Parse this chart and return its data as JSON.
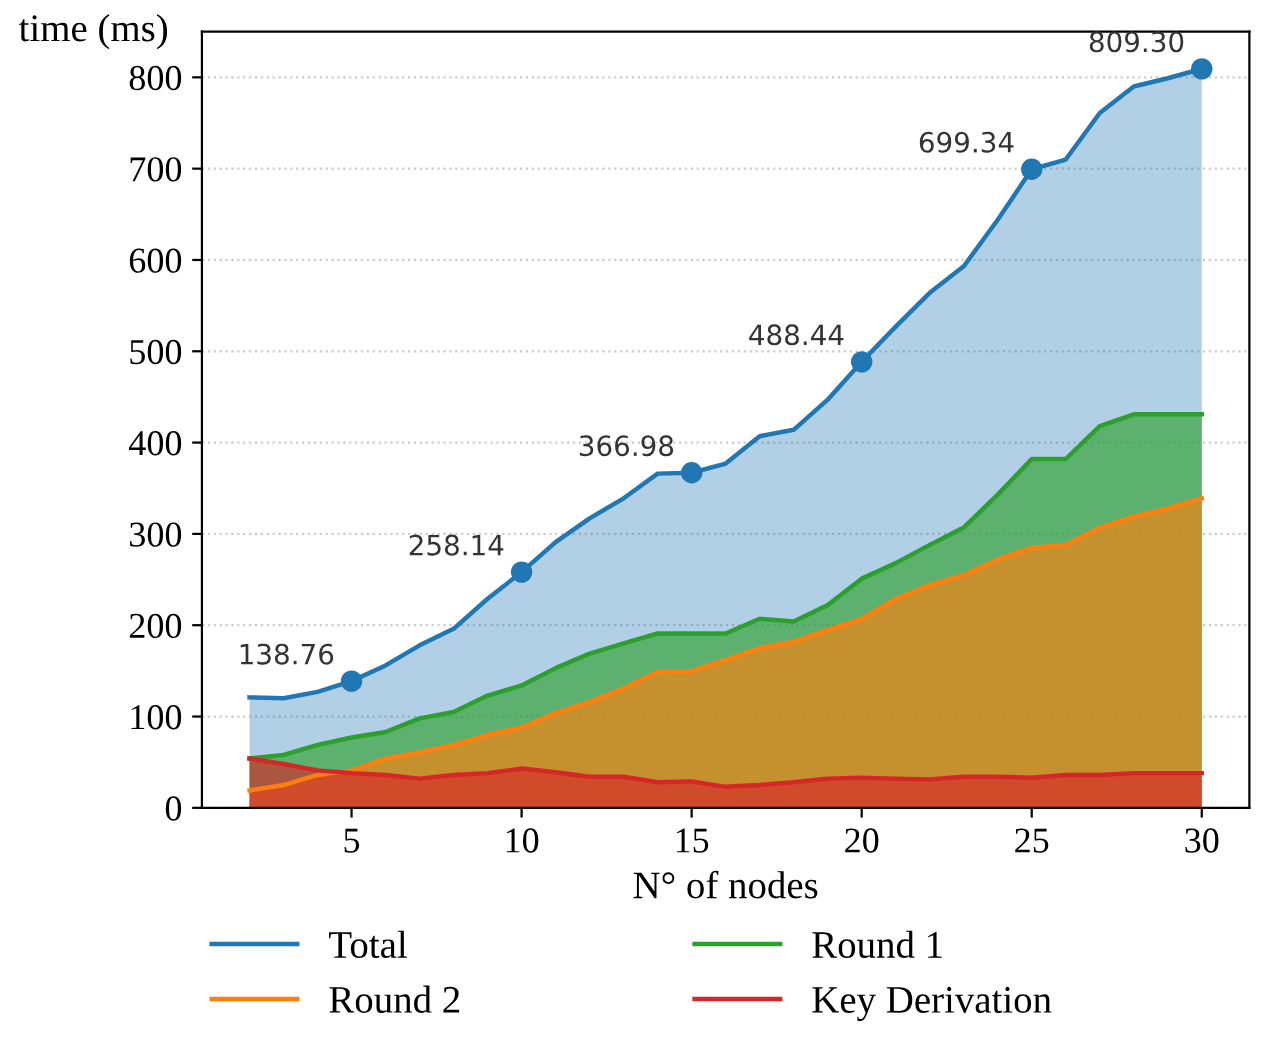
{
  "chart_data": {
    "type": "area",
    "xlabel": "N° of nodes",
    "ylabel": "time (ms)",
    "x": [
      2,
      3,
      4,
      5,
      6,
      7,
      8,
      9,
      10,
      11,
      12,
      13,
      14,
      15,
      16,
      17,
      18,
      19,
      20,
      21,
      22,
      23,
      24,
      25,
      26,
      27,
      28,
      29,
      30
    ],
    "series": [
      {
        "name": "Total",
        "color": "#1f77b4",
        "values": [
          121,
          120,
          127,
          138.76,
          156,
          178,
          196,
          229,
          258.14,
          291,
          317,
          339,
          366,
          366.98,
          377,
          407,
          414,
          447,
          488.44,
          527,
          564,
          593,
          644,
          699.34,
          710,
          761,
          790,
          799,
          809.3
        ]
      },
      {
        "name": "Round 1",
        "color": "#2ca02c",
        "values": [
          54,
          58,
          69,
          77,
          83,
          98,
          105,
          123,
          134,
          153,
          169,
          180,
          191,
          191,
          191,
          207,
          204,
          222,
          251,
          268,
          288,
          307,
          343,
          382,
          382,
          418,
          431,
          431,
          431
        ]
      },
      {
        "name": "Round 2",
        "color": "#ff7f0e",
        "values": [
          19,
          25,
          36,
          41,
          54,
          61,
          69,
          80,
          88,
          104,
          116,
          131,
          149,
          150,
          162,
          175,
          182,
          195,
          207,
          229,
          244,
          255,
          272,
          285,
          288,
          307,
          319,
          328,
          339
        ]
      },
      {
        "name": "Key Derivation",
        "color": "#d62728",
        "values": [
          54,
          48,
          41,
          38,
          36,
          32,
          36,
          38,
          43,
          39,
          34,
          34,
          28,
          29,
          23,
          25,
          28,
          32,
          33,
          32,
          31,
          34,
          34,
          33,
          36,
          36,
          38,
          38,
          38
        ]
      },
      {
        "type": "scatter",
        "color": "#1f77b4",
        "x": [
          5,
          10,
          15,
          20,
          25,
          30
        ],
        "values": [
          138.76,
          258.14,
          366.98,
          488.44,
          699.34,
          809.3
        ],
        "value_labels": [
          "138.76",
          "258.14",
          "366.98",
          "488.44",
          "699.34",
          "809.30"
        ]
      }
    ],
    "xlim": [
      0.6,
      31.4
    ],
    "ylim": [
      0,
      850
    ],
    "xticks": [
      5,
      10,
      15,
      20,
      25,
      30
    ],
    "yticks": [
      0,
      100,
      200,
      300,
      400,
      500,
      600,
      700,
      800
    ],
    "grid": "y",
    "legend": "bottom"
  }
}
